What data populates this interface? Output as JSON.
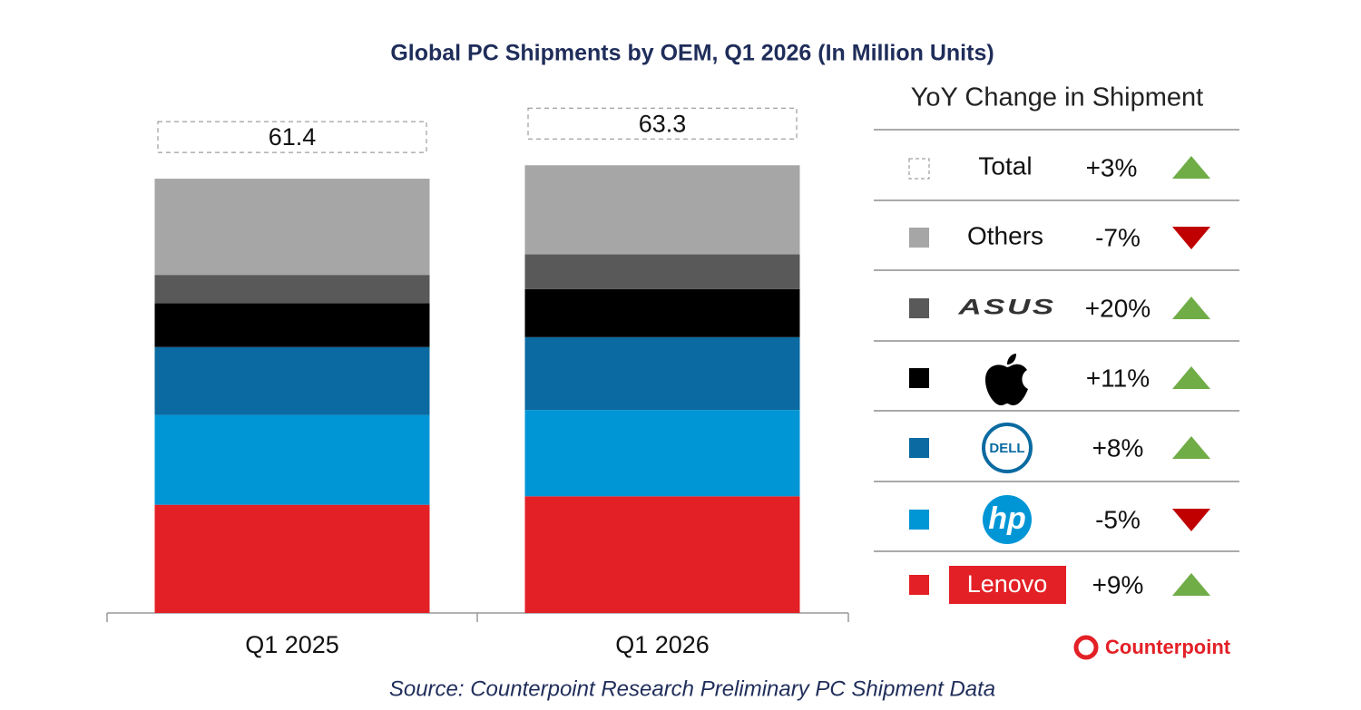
{
  "chart_data": {
    "type": "stacked_bar",
    "title": "Global PC Shipments by OEM, Q1 2026 (In Million Units)",
    "categories": [
      "Q1 2025",
      "Q1 2026"
    ],
    "ylim": [
      0,
      70
    ],
    "totals": [
      61.4,
      63.3
    ],
    "series": [
      {
        "name": "Lenovo",
        "color": "#e32026",
        "values": [
          15.3,
          16.5
        ],
        "change": "+9%"
      },
      {
        "name": "hp",
        "color": "#0096d6",
        "values": [
          12.7,
          12.2
        ],
        "change": "-5%"
      },
      {
        "name": "DELL",
        "color": "#0a6aa1",
        "values": [
          9.6,
          10.3
        ],
        "change": "+8%"
      },
      {
        "name": null,
        "color": "#000000",
        "values": [
          6.2,
          6.8
        ],
        "change": "+11%"
      },
      {
        "name": "ASUS",
        "color": "#595959",
        "values": [
          4.0,
          4.9
        ],
        "change": "+20%"
      },
      {
        "name": "Others",
        "color": "#a6a6a6",
        "values": [
          13.6,
          12.6
        ],
        "change": "-7%"
      }
    ],
    "yoy_title": "YoY Change in Shipment",
    "total_name": "Total",
    "total_change": "+3%",
    "up_color": "#70ad47",
    "down_color": "#c00000",
    "source": "Source: Counterpoint Research Preliminary PC Shipment Data",
    "brand": "Counterpoint"
  }
}
